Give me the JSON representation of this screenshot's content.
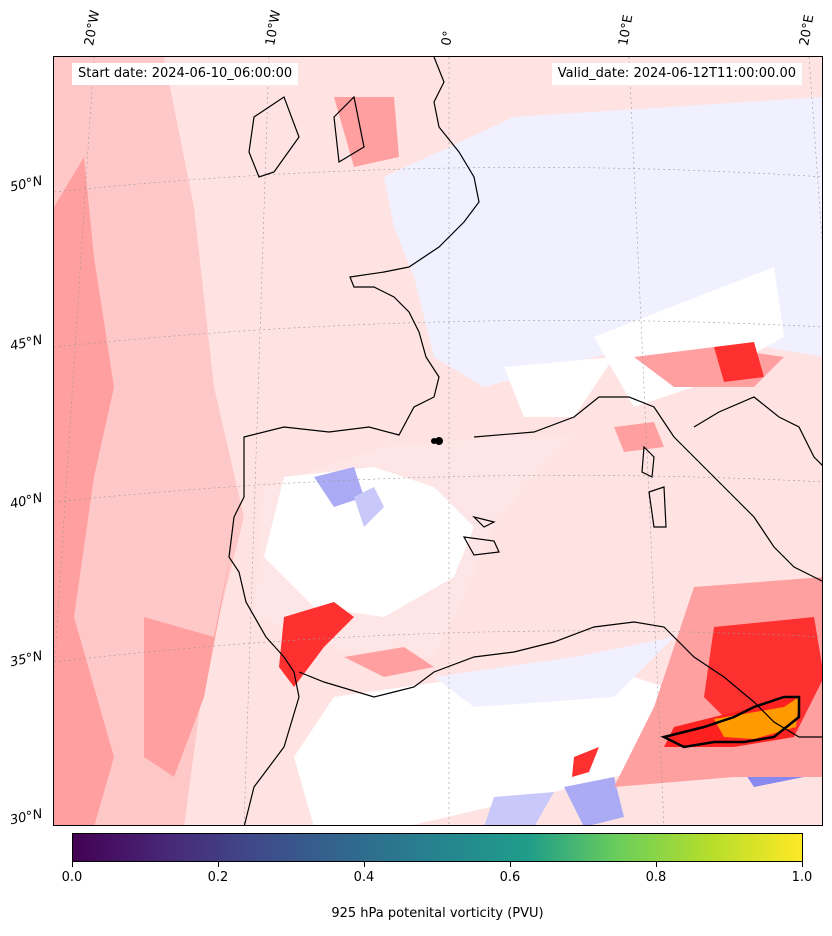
{
  "header": {
    "start_date": "Start date: 2024-06-10_06:00:00",
    "valid_date": "Valid_date: 2024-06-12T11:00:00.00"
  },
  "longitude_labels": [
    "20°W",
    "10°W",
    "0°",
    "10°E",
    "20°E"
  ],
  "latitude_labels": [
    "50°N",
    "45°N",
    "40°N",
    "35°N",
    "30°N"
  ],
  "colorbar": {
    "label": "925 hPa potenital vorticity (PVU)",
    "ticks": [
      "0.0",
      "0.2",
      "0.4",
      "0.6",
      "0.8",
      "1.0"
    ],
    "colormap": "viridis",
    "range": [
      0.0,
      1.0
    ]
  },
  "field_colors": {
    "ocean_high": "#ff8a8a",
    "ocean_mid": "#ffc8c8",
    "ocean_low": "#ffe3e3",
    "land_neutral": "#f0f0ff",
    "land_zero": "#ffffff",
    "negative": "#aaaaf5",
    "strong": "#ff2020",
    "peak": "#ff9a00"
  }
}
